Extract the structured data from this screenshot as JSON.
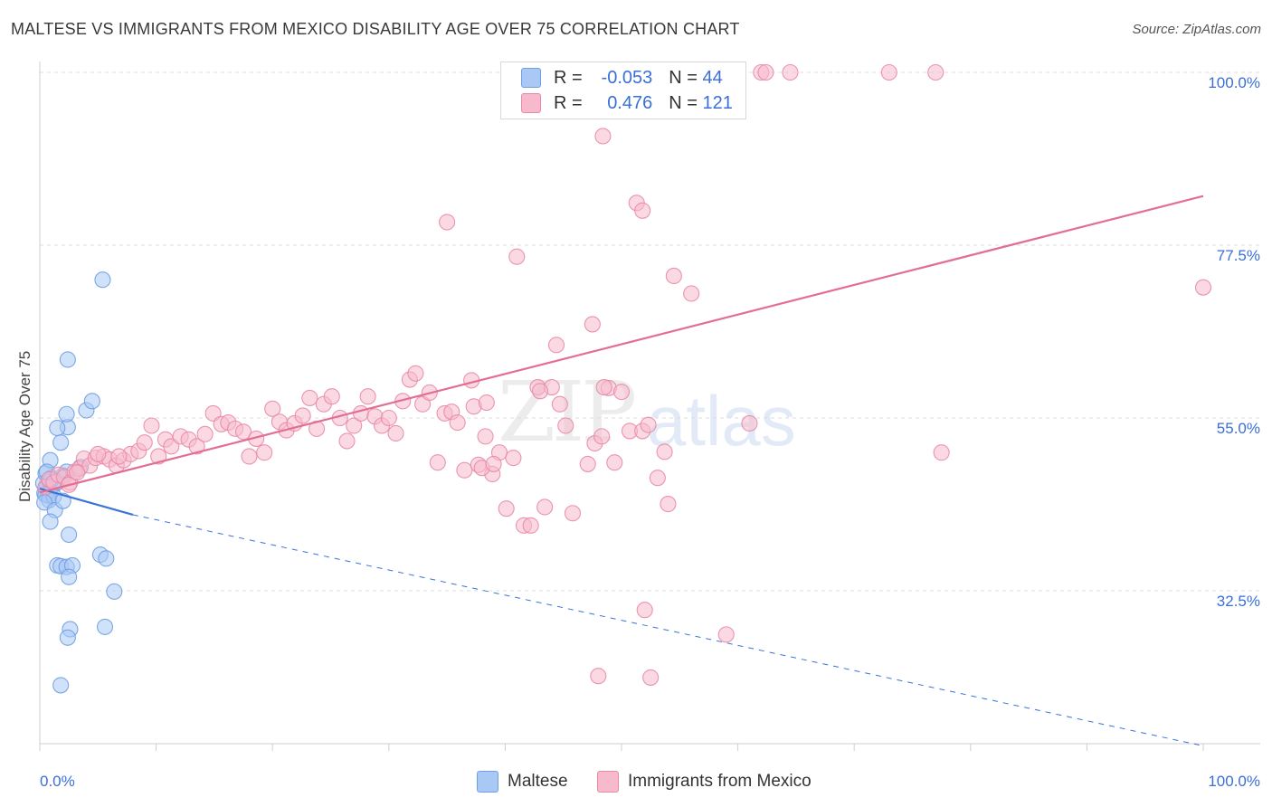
{
  "title": "MALTESE VS IMMIGRANTS FROM MEXICO DISABILITY AGE OVER 75 CORRELATION CHART",
  "source": "Source: ZipAtlas.com",
  "watermark": {
    "zip": "ZIP",
    "atlas": "atlas"
  },
  "legend_top": [
    {
      "r_label": "R =",
      "r_value": "-0.053",
      "n_label": "N =",
      "n_value": "44",
      "color": "#a9c8f5",
      "border": "#6f9fe0"
    },
    {
      "r_label": "R =",
      "r_value": "0.476",
      "n_label": "N =",
      "n_value": "121",
      "color": "#f7b9cc",
      "border": "#e88aa8"
    }
  ],
  "legend_bottom": [
    {
      "name": "Maltese",
      "color": "#a9c8f5",
      "border": "#6f9fe0"
    },
    {
      "name": "Immigrants from Mexico",
      "color": "#f7b9cc",
      "border": "#e88aa8"
    }
  ],
  "chart_data": {
    "type": "scatter",
    "title": "MALTESE VS IMMIGRANTS FROM MEXICO DISABILITY AGE OVER 75 CORRELATION CHART",
    "xlabel": "",
    "ylabel": "Disability Age Over 75",
    "xlim": [
      0,
      100
    ],
    "ylim": [
      10,
      102
    ],
    "x_tick_labels": [
      "0.0%",
      "100.0%"
    ],
    "y_ticks": [
      32.5,
      55.0,
      77.5,
      100.0
    ],
    "y_tick_labels": [
      "32.5%",
      "55.0%",
      "77.5%",
      "100.0%"
    ],
    "grid": true,
    "series": [
      {
        "name": "Maltese",
        "color": "#6f9fe0",
        "fill": "#a9c8f5",
        "trend": {
          "x0": 0,
          "y0": 45.8,
          "x1": 8.0,
          "y1": 42.4,
          "dash_to_x": 100,
          "dash_to_y": 12.3,
          "color": "#3a74d4"
        },
        "points": [
          [
            0.3,
            46.5
          ],
          [
            0.4,
            45.2
          ],
          [
            0.5,
            47.8
          ],
          [
            0.6,
            46.0
          ],
          [
            0.7,
            44.9
          ],
          [
            0.8,
            46.8
          ],
          [
            0.9,
            45.5
          ],
          [
            1.0,
            47.2
          ],
          [
            1.1,
            46.2
          ],
          [
            0.5,
            45.0
          ],
          [
            0.8,
            44.3
          ],
          [
            1.2,
            44.8
          ],
          [
            1.5,
            46.6
          ],
          [
            2.0,
            47.5
          ],
          [
            0.4,
            44.0
          ],
          [
            1.3,
            43.0
          ],
          [
            2.0,
            44.2
          ],
          [
            2.3,
            48.0
          ],
          [
            3.5,
            48.6
          ],
          [
            0.9,
            49.5
          ],
          [
            1.8,
            51.8
          ],
          [
            2.4,
            53.8
          ],
          [
            1.5,
            53.7
          ],
          [
            2.3,
            55.5
          ],
          [
            4.0,
            56.0
          ],
          [
            4.5,
            57.2
          ],
          [
            2.4,
            62.6
          ],
          [
            5.4,
            73.0
          ],
          [
            0.9,
            41.5
          ],
          [
            2.5,
            39.8
          ],
          [
            1.5,
            35.8
          ],
          [
            1.8,
            35.7
          ],
          [
            2.3,
            35.6
          ],
          [
            2.8,
            35.8
          ],
          [
            5.2,
            37.2
          ],
          [
            5.7,
            36.7
          ],
          [
            6.4,
            32.4
          ],
          [
            2.5,
            34.3
          ],
          [
            2.6,
            27.5
          ],
          [
            2.4,
            26.4
          ],
          [
            5.6,
            27.8
          ],
          [
            1.8,
            20.2
          ],
          [
            1.0,
            47.0
          ],
          [
            0.6,
            48.0
          ]
        ]
      },
      {
        "name": "Immigrants from Mexico",
        "color": "#e88aa8",
        "fill": "#f7b9cc",
        "trend": {
          "x0": 0,
          "y0": 45.3,
          "x1": 100,
          "y1": 83.9,
          "color": "#e26e96"
        },
        "points": [
          [
            0.5,
            46.0
          ],
          [
            0.8,
            47.0
          ],
          [
            1.2,
            46.6
          ],
          [
            1.6,
            47.6
          ],
          [
            2.1,
            47.3
          ],
          [
            2.6,
            46.6
          ],
          [
            3.0,
            48.0
          ],
          [
            3.4,
            48.4
          ],
          [
            3.8,
            49.7
          ],
          [
            4.3,
            48.8
          ],
          [
            4.8,
            49.8
          ],
          [
            5.5,
            50.0
          ],
          [
            6.0,
            49.6
          ],
          [
            6.6,
            48.8
          ],
          [
            7.2,
            49.5
          ],
          [
            7.8,
            50.3
          ],
          [
            8.5,
            50.7
          ],
          [
            9.0,
            51.8
          ],
          [
            9.6,
            54.0
          ],
          [
            10.2,
            50.0
          ],
          [
            10.8,
            52.2
          ],
          [
            11.3,
            51.3
          ],
          [
            12.1,
            52.6
          ],
          [
            12.8,
            52.2
          ],
          [
            13.5,
            51.3
          ],
          [
            14.2,
            52.9
          ],
          [
            14.9,
            55.6
          ],
          [
            15.6,
            54.2
          ],
          [
            16.2,
            54.4
          ],
          [
            16.8,
            53.6
          ],
          [
            17.5,
            53.2
          ],
          [
            18.0,
            50.0
          ],
          [
            18.6,
            52.3
          ],
          [
            19.3,
            50.5
          ],
          [
            20.0,
            56.2
          ],
          [
            20.6,
            54.5
          ],
          [
            21.2,
            53.4
          ],
          [
            21.9,
            54.3
          ],
          [
            22.6,
            55.3
          ],
          [
            23.2,
            57.6
          ],
          [
            23.8,
            53.6
          ],
          [
            24.4,
            56.8
          ],
          [
            25.1,
            57.8
          ],
          [
            25.8,
            55.0
          ],
          [
            26.4,
            52.0
          ],
          [
            27.0,
            54.0
          ],
          [
            27.6,
            55.6
          ],
          [
            28.2,
            57.8
          ],
          [
            28.8,
            55.2
          ],
          [
            29.4,
            54.0
          ],
          [
            30.0,
            55.0
          ],
          [
            30.6,
            53.0
          ],
          [
            31.2,
            57.2
          ],
          [
            31.8,
            60.0
          ],
          [
            32.3,
            60.8
          ],
          [
            32.9,
            56.8
          ],
          [
            33.5,
            58.3
          ],
          [
            34.2,
            49.2
          ],
          [
            34.8,
            55.6
          ],
          [
            35.4,
            55.8
          ],
          [
            35.9,
            54.4
          ],
          [
            36.5,
            48.2
          ],
          [
            37.1,
            59.9
          ],
          [
            37.7,
            48.9
          ],
          [
            38.3,
            52.6
          ],
          [
            38.9,
            47.7
          ],
          [
            39.5,
            50.5
          ],
          [
            40.1,
            43.2
          ],
          [
            40.7,
            49.8
          ],
          [
            37.3,
            56.5
          ],
          [
            38.4,
            57.0
          ],
          [
            38.0,
            48.5
          ],
          [
            39.0,
            49.0
          ],
          [
            41.6,
            41.0
          ],
          [
            42.2,
            41.0
          ],
          [
            42.8,
            59.0
          ],
          [
            43.4,
            43.4
          ],
          [
            44.0,
            59.0
          ],
          [
            44.7,
            56.8
          ],
          [
            45.2,
            54.0
          ],
          [
            45.8,
            42.6
          ],
          [
            47.1,
            49.0
          ],
          [
            47.7,
            51.7
          ],
          [
            48.3,
            52.6
          ],
          [
            48.9,
            58.9
          ],
          [
            49.4,
            49.2
          ],
          [
            50.0,
            58.4
          ],
          [
            50.7,
            53.3
          ],
          [
            51.8,
            53.3
          ],
          [
            52.3,
            54.1
          ],
          [
            53.1,
            47.2
          ],
          [
            53.7,
            50.6
          ],
          [
            35.0,
            80.5
          ],
          [
            41.0,
            76.0
          ],
          [
            43.0,
            58.5
          ],
          [
            44.4,
            64.5
          ],
          [
            47.5,
            67.2
          ],
          [
            48.5,
            59.0
          ],
          [
            48.4,
            91.7
          ],
          [
            51.3,
            83.0
          ],
          [
            51.8,
            82.0
          ],
          [
            54.5,
            73.5
          ],
          [
            56.0,
            71.2
          ],
          [
            54.0,
            43.8
          ],
          [
            61.0,
            54.3
          ],
          [
            52.0,
            30.0
          ],
          [
            59.0,
            26.8
          ],
          [
            48.0,
            21.4
          ],
          [
            52.5,
            21.2
          ],
          [
            57.0,
            100.0
          ],
          [
            57.5,
            100.0
          ],
          [
            58.0,
            100.0
          ],
          [
            62.0,
            100.0
          ],
          [
            62.4,
            100.0
          ],
          [
            64.5,
            100.0
          ],
          [
            73.0,
            100.0
          ],
          [
            77.0,
            100.0
          ],
          [
            77.5,
            50.5
          ],
          [
            100.0,
            72.0
          ],
          [
            3.2,
            47.9
          ],
          [
            2.5,
            46.3
          ],
          [
            6.8,
            50.0
          ],
          [
            5.0,
            50.3
          ]
        ]
      }
    ]
  }
}
